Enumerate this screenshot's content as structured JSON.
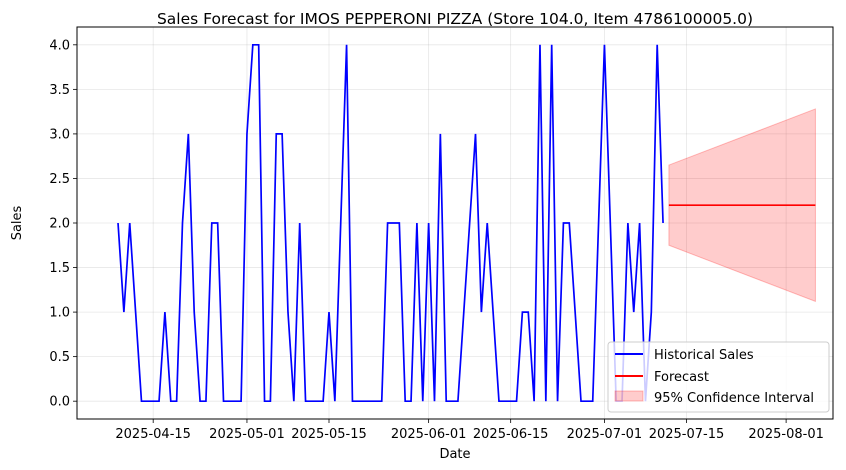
{
  "chart_data": {
    "type": "line",
    "title": "Sales Forecast for IMOS PEPPERONI PIZZA (Store 104.0, Item 4786100005.0)",
    "xlabel": "Date",
    "ylabel": "Sales",
    "grid": true,
    "legend_position": "lower-right",
    "xlim": [
      "2025-04-02",
      "2025-08-09"
    ],
    "ylim": [
      -0.2,
      4.2
    ],
    "xticks": [
      "2025-04-15",
      "2025-05-01",
      "2025-05-15",
      "2025-06-01",
      "2025-06-15",
      "2025-07-01",
      "2025-07-15",
      "2025-08-01"
    ],
    "yticks": [
      "0.0",
      "0.5",
      "1.0",
      "1.5",
      "2.0",
      "2.5",
      "3.0",
      "3.5",
      "4.0"
    ],
    "series": [
      {
        "name": "Historical Sales",
        "color": "#0000ff",
        "x": [
          "2025-04-09",
          "2025-04-10",
          "2025-04-11",
          "2025-04-12",
          "2025-04-13",
          "2025-04-14",
          "2025-04-15",
          "2025-04-16",
          "2025-04-17",
          "2025-04-18",
          "2025-04-19",
          "2025-04-20",
          "2025-04-21",
          "2025-04-22",
          "2025-04-23",
          "2025-04-24",
          "2025-04-25",
          "2025-04-26",
          "2025-04-27",
          "2025-04-28",
          "2025-04-29",
          "2025-04-30",
          "2025-05-01",
          "2025-05-02",
          "2025-05-03",
          "2025-05-04",
          "2025-05-05",
          "2025-05-06",
          "2025-05-07",
          "2025-05-08",
          "2025-05-09",
          "2025-05-10",
          "2025-05-11",
          "2025-05-12",
          "2025-05-13",
          "2025-05-14",
          "2025-05-15",
          "2025-05-16",
          "2025-05-17",
          "2025-05-18",
          "2025-05-19",
          "2025-05-20",
          "2025-05-21",
          "2025-05-22",
          "2025-05-23",
          "2025-05-24",
          "2025-05-25",
          "2025-05-26",
          "2025-05-27",
          "2025-05-28",
          "2025-05-29",
          "2025-05-30",
          "2025-05-31",
          "2025-06-01",
          "2025-06-02",
          "2025-06-03",
          "2025-06-04",
          "2025-06-05",
          "2025-06-06",
          "2025-06-07",
          "2025-06-08",
          "2025-06-09",
          "2025-06-10",
          "2025-06-11",
          "2025-06-12",
          "2025-06-13",
          "2025-06-14",
          "2025-06-15",
          "2025-06-16",
          "2025-06-17",
          "2025-06-18",
          "2025-06-19",
          "2025-06-20",
          "2025-06-21",
          "2025-06-22",
          "2025-06-23",
          "2025-06-24",
          "2025-06-25",
          "2025-06-26",
          "2025-06-27",
          "2025-06-28",
          "2025-06-29",
          "2025-06-30",
          "2025-07-01",
          "2025-07-02",
          "2025-07-03",
          "2025-07-04",
          "2025-07-05",
          "2025-07-06",
          "2025-07-07",
          "2025-07-08",
          "2025-07-09",
          "2025-07-10",
          "2025-07-11"
        ],
        "values": [
          2,
          1,
          2,
          1,
          0,
          0,
          0,
          0,
          1,
          0,
          0,
          2,
          3,
          1,
          0,
          0,
          2,
          2,
          0,
          0,
          0,
          0,
          3,
          4,
          4,
          0,
          0,
          3,
          3,
          1,
          0,
          2,
          0,
          0,
          0,
          0,
          1,
          0,
          2,
          4,
          0,
          0,
          0,
          0,
          0,
          0,
          2,
          2,
          2,
          0,
          0,
          2,
          0,
          2,
          0,
          3,
          0,
          0,
          0,
          1,
          2,
          3,
          1,
          2,
          1,
          0,
          0,
          0,
          0,
          1,
          1,
          0,
          4,
          0,
          4,
          0,
          2,
          2,
          1,
          0,
          0,
          0,
          2,
          4,
          2,
          0,
          0,
          2,
          1,
          2,
          0,
          1,
          4,
          2
        ]
      },
      {
        "name": "Forecast",
        "color": "#ff0000",
        "x": [
          "2025-07-12",
          "2025-08-06"
        ],
        "values": [
          2.2,
          2.2
        ]
      }
    ],
    "confidence_interval": {
      "name": "95% Confidence Interval",
      "color": "#ff0000",
      "x": [
        "2025-07-12",
        "2025-08-06"
      ],
      "lower": [
        1.75,
        1.12
      ],
      "upper": [
        2.65,
        3.28
      ]
    }
  }
}
